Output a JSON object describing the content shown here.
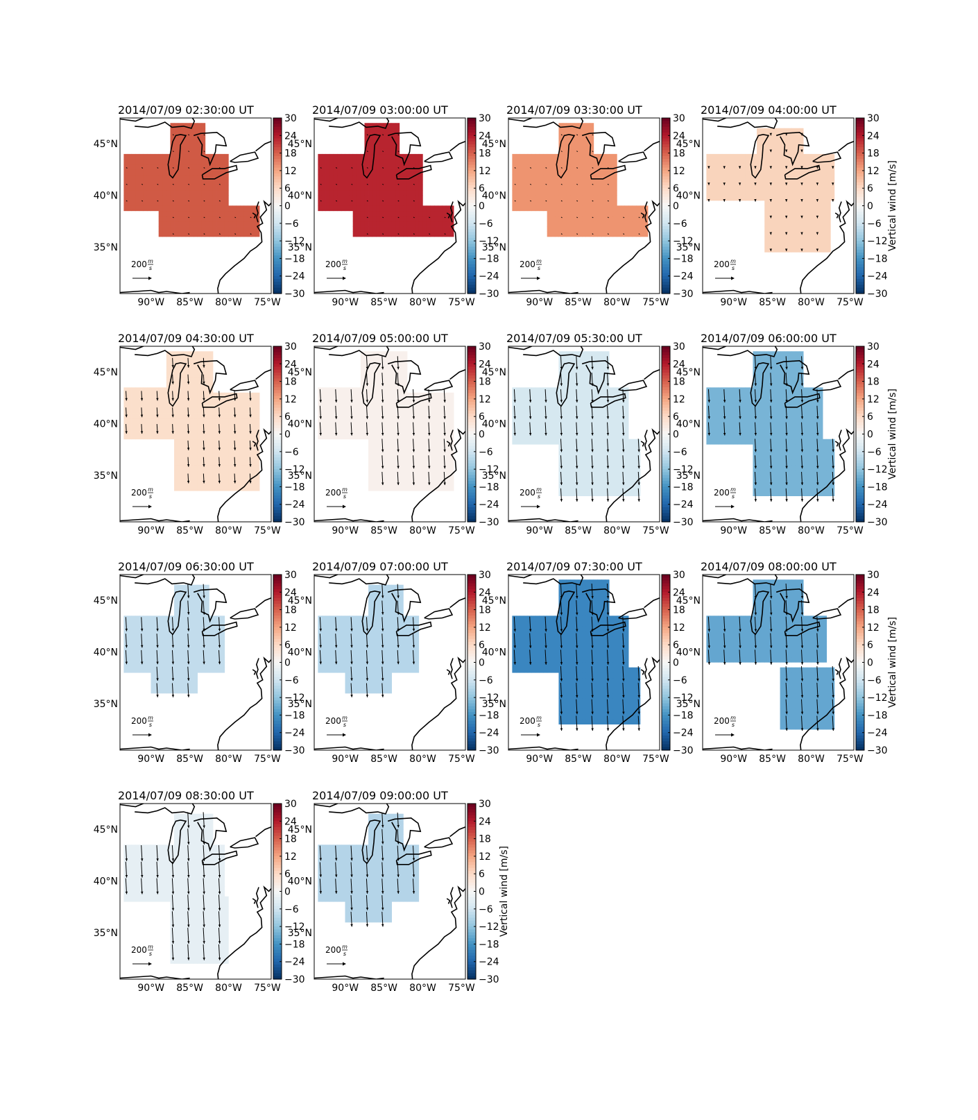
{
  "panels": [
    {
      "title": "2014/07/09 02:30:00 UT",
      "fill": "#d05a45",
      "region": "A",
      "vector_scale": 0.04,
      "show_cbar_label": false
    },
    {
      "title": "2014/07/09 03:00:00 UT",
      "fill": "#b8242f",
      "region": "A",
      "vector_scale": 0.04,
      "show_cbar_label": false
    },
    {
      "title": "2014/07/09 03:30:00 UT",
      "fill": "#ee9470",
      "region": "A",
      "vector_scale": 0.04,
      "show_cbar_label": false
    },
    {
      "title": "2014/07/09 04:00:00 UT",
      "fill": "#f9d4bc",
      "region": "B",
      "vector_scale": 0.12,
      "show_cbar_label": true
    },
    {
      "title": "2014/07/09 04:30:00 UT",
      "fill": "#fbdfcb",
      "region": "C",
      "vector_scale": 0.55,
      "show_cbar_label": false
    },
    {
      "title": "2014/07/09 05:00:00 UT",
      "fill": "#f8f0ec",
      "region": "C",
      "vector_scale": 0.75,
      "show_cbar_label": false
    },
    {
      "title": "2014/07/09 05:30:00 UT",
      "fill": "#d6e8f0",
      "region": "D",
      "vector_scale": 0.75,
      "show_cbar_label": false
    },
    {
      "title": "2014/07/09 06:00:00 UT",
      "fill": "#78b4d6",
      "region": "D",
      "vector_scale": 0.75,
      "show_cbar_label": true
    },
    {
      "title": "2014/07/09 06:30:00 UT",
      "fill": "#c2dcec",
      "region": "E",
      "vector_scale": 0.8,
      "show_cbar_label": false
    },
    {
      "title": "2014/07/09 07:00:00 UT",
      "fill": "#b6d6ea",
      "region": "E",
      "vector_scale": 0.8,
      "show_cbar_label": false
    },
    {
      "title": "2014/07/09 07:30:00 UT",
      "fill": "#3a86c0",
      "region": "D",
      "vector_scale": 0.85,
      "show_cbar_label": false
    },
    {
      "title": "2014/07/09 08:00:00 UT",
      "fill": "#64a6d0",
      "region": "F",
      "vector_scale": 0.85,
      "show_cbar_label": true
    },
    {
      "title": "2014/07/09 08:30:00 UT",
      "fill": "#e6eff4",
      "region": "G",
      "vector_scale": 0.9,
      "show_cbar_label": false
    },
    {
      "title": "2014/07/09 09:00:00 UT",
      "fill": "#b4d4e8",
      "region": "E",
      "vector_scale": 0.85,
      "show_cbar_label": true
    }
  ],
  "colorbar": {
    "ticks": [
      "30",
      "24",
      "18",
      "12",
      "6",
      "0",
      "−6",
      "−12",
      "−18",
      "−24",
      "−30"
    ],
    "label": "Vertical wind [m/s]",
    "range": [
      -30,
      30
    ],
    "cmap": "RdBu_r"
  },
  "axes": {
    "lon_ticks": [
      "90°W",
      "85°W",
      "80°W",
      "75°W"
    ],
    "lat_ticks": [
      "45°N",
      "40°N",
      "35°N"
    ]
  },
  "scale_arrow": {
    "label_value": "200",
    "label_unit_num": "m",
    "label_unit_den": "s"
  }
}
